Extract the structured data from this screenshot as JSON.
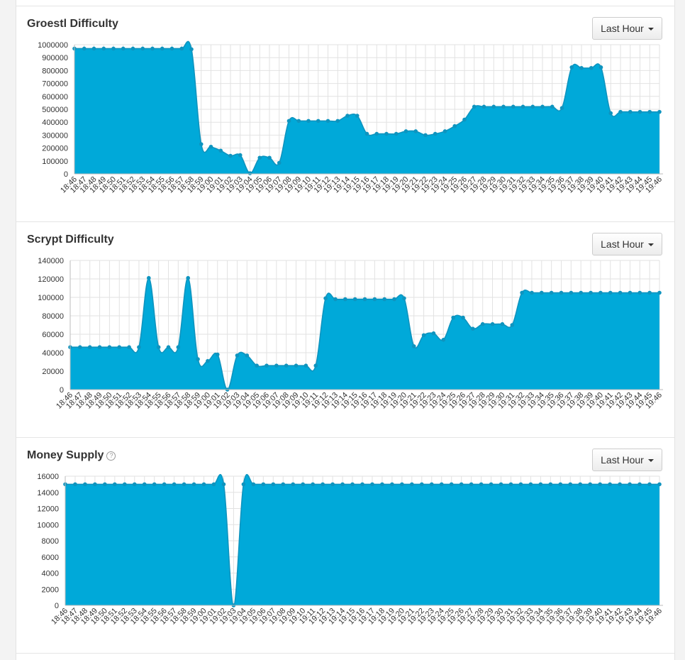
{
  "x_labels": [
    "18:46",
    "18:47",
    "18:48",
    "18:49",
    "18:50",
    "18:51",
    "18:52",
    "18:53",
    "18:54",
    "18:55",
    "18:56",
    "18:57",
    "18:58",
    "18:59",
    "19:00",
    "19:01",
    "19:02",
    "19:03",
    "19:04",
    "19:05",
    "19:06",
    "19:07",
    "19:08",
    "19:09",
    "19:10",
    "19:11",
    "19:12",
    "19:13",
    "19:14",
    "19:15",
    "19:16",
    "19:17",
    "19:18",
    "19:19",
    "19:20",
    "19:21",
    "19:22",
    "19:23",
    "19:24",
    "19:25",
    "19:26",
    "19:27",
    "19:28",
    "19:29",
    "19:30",
    "19:31",
    "19:32",
    "19:33",
    "19:34",
    "19:35",
    "19:36",
    "19:37",
    "19:38",
    "19:39",
    "19:40",
    "19:41",
    "19:42",
    "19:43",
    "19:44",
    "19:45",
    "19:46"
  ],
  "colors": {
    "fill": "#00a9d9",
    "stroke": "#0e94bf",
    "grid": "#e2e2e2"
  },
  "panels": [
    {
      "title": "Groestl Difficulty",
      "has_help_icon": false,
      "button_label": "Last Hour"
    },
    {
      "title": "Scrypt Difficulty",
      "has_help_icon": false,
      "button_label": "Last Hour"
    },
    {
      "title": "Money Supply",
      "has_help_icon": true,
      "help_icon": "question-circle-icon",
      "button_label": "Last Hour"
    }
  ],
  "chart_data": [
    {
      "type": "area",
      "title": "Groestl Difficulty",
      "ylim": [
        0,
        1000000
      ],
      "yticks": [
        0,
        100000,
        200000,
        300000,
        400000,
        500000,
        600000,
        700000,
        800000,
        900000,
        1000000
      ],
      "grid": true,
      "values": [
        970000,
        970000,
        970000,
        970000,
        970000,
        970000,
        970000,
        970000,
        970000,
        970000,
        970000,
        970000,
        965000,
        230000,
        210000,
        180000,
        140000,
        145000,
        5000,
        125000,
        125000,
        85000,
        410000,
        410000,
        410000,
        410000,
        410000,
        410000,
        450000,
        450000,
        310000,
        310000,
        310000,
        310000,
        330000,
        330000,
        300000,
        310000,
        330000,
        370000,
        420000,
        520000,
        520000,
        520000,
        520000,
        520000,
        520000,
        520000,
        520000,
        520000,
        510000,
        825000,
        820000,
        820000,
        825000,
        470000,
        480000,
        480000,
        480000,
        480000,
        480000
      ]
    },
    {
      "type": "area",
      "title": "Scrypt Difficulty",
      "ylim": [
        0,
        140000
      ],
      "yticks": [
        0,
        20000,
        40000,
        60000,
        80000,
        100000,
        120000,
        140000
      ],
      "grid": true,
      "values": [
        46000,
        46000,
        46000,
        46000,
        46000,
        46000,
        46000,
        46000,
        121000,
        46000,
        46000,
        46000,
        121000,
        33000,
        31000,
        38000,
        0,
        37000,
        37000,
        26000,
        26000,
        26000,
        26000,
        26000,
        26000,
        26000,
        99000,
        98000,
        98000,
        98000,
        98000,
        98000,
        98000,
        98000,
        99000,
        47000,
        59000,
        61000,
        54000,
        78000,
        78000,
        66000,
        71000,
        71000,
        71000,
        70000,
        105000,
        105000,
        105000,
        105000,
        105000,
        105000,
        105000,
        105000,
        105000,
        105000,
        105000,
        105000,
        105000,
        105000,
        105000
      ]
    },
    {
      "type": "area",
      "title": "Money Supply",
      "ylim": [
        0,
        16000
      ],
      "yticks": [
        0,
        2000,
        4000,
        6000,
        8000,
        10000,
        12000,
        14000,
        16000
      ],
      "grid": true,
      "values": [
        15000,
        15000,
        15000,
        15000,
        15000,
        15000,
        15000,
        15000,
        15000,
        15000,
        15000,
        15000,
        15000,
        15000,
        15000,
        15000,
        15000,
        0,
        15000,
        15000,
        15000,
        15000,
        15000,
        15000,
        15000,
        15000,
        15000,
        15000,
        15000,
        15000,
        15000,
        15000,
        15000,
        15000,
        15000,
        15000,
        15000,
        15000,
        15000,
        15000,
        15000,
        15000,
        15000,
        15000,
        15000,
        15000,
        15000,
        15000,
        15000,
        15000,
        15000,
        15000,
        15000,
        15000,
        15000,
        15000,
        15000,
        15000,
        15000,
        15000,
        15000
      ]
    }
  ]
}
